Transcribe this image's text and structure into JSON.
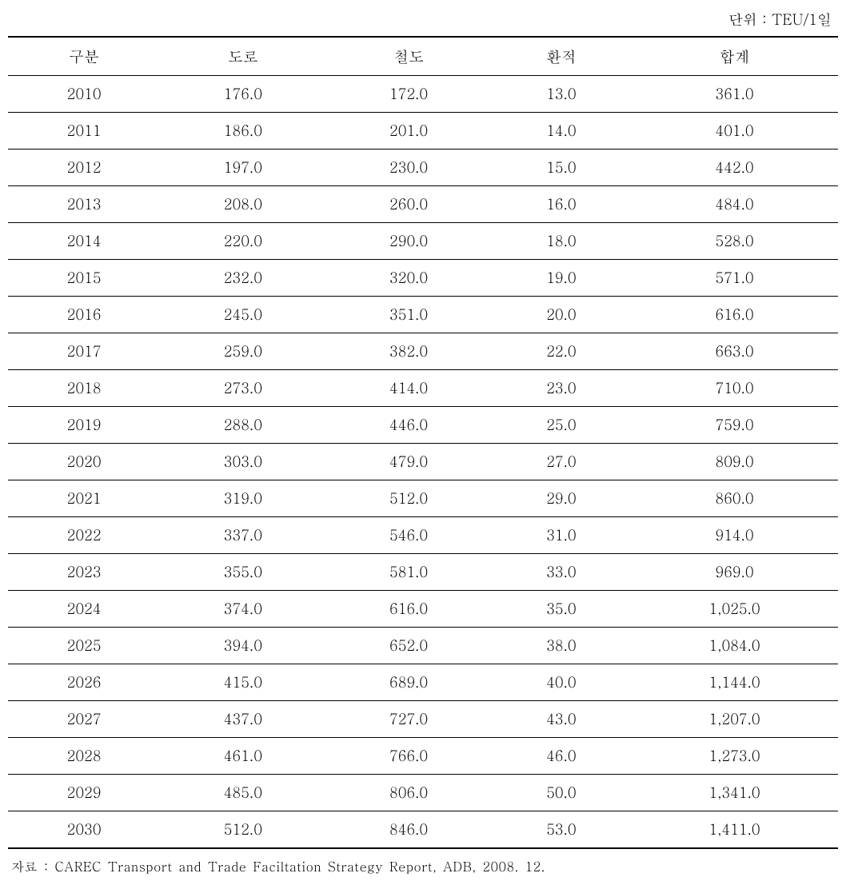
{
  "unit_text": "단위 : TEU/1일",
  "table": {
    "columns": [
      "구분",
      "도로",
      "철도",
      "환적",
      "합계"
    ],
    "rows": [
      [
        "2010",
        "176.0",
        "172.0",
        "13.0",
        "361.0"
      ],
      [
        "2011",
        "186.0",
        "201.0",
        "14.0",
        "401.0"
      ],
      [
        "2012",
        "197.0",
        "230.0",
        "15.0",
        "442.0"
      ],
      [
        "2013",
        "208.0",
        "260.0",
        "16.0",
        "484.0"
      ],
      [
        "2014",
        "220.0",
        "290.0",
        "18.0",
        "528.0"
      ],
      [
        "2015",
        "232.0",
        "320.0",
        "19.0",
        "571.0"
      ],
      [
        "2016",
        "245.0",
        "351.0",
        "20.0",
        "616.0"
      ],
      [
        "2017",
        "259.0",
        "382.0",
        "22.0",
        "663.0"
      ],
      [
        "2018",
        "273.0",
        "414.0",
        "23.0",
        "710.0"
      ],
      [
        "2019",
        "288.0",
        "446.0",
        "25.0",
        "759.0"
      ],
      [
        "2020",
        "303.0",
        "479.0",
        "27.0",
        "809.0"
      ],
      [
        "2021",
        "319.0",
        "512.0",
        "29.0",
        "860.0"
      ],
      [
        "2022",
        "337.0",
        "546.0",
        "31.0",
        "914.0"
      ],
      [
        "2023",
        "355.0",
        "581.0",
        "33.0",
        "969.0"
      ],
      [
        "2024",
        "374.0",
        "616.0",
        "35.0",
        "1,025.0"
      ],
      [
        "2025",
        "394.0",
        "652.0",
        "38.0",
        "1,084.0"
      ],
      [
        "2026",
        "415.0",
        "689.0",
        "40.0",
        "1,144.0"
      ],
      [
        "2027",
        "437.0",
        "727.0",
        "43.0",
        "1,207.0"
      ],
      [
        "2028",
        "461.0",
        "766.0",
        "46.0",
        "1,273.0"
      ],
      [
        "2029",
        "485.0",
        "806.0",
        "50.0",
        "1,341.0"
      ],
      [
        "2030",
        "512.0",
        "846.0",
        "53.0",
        "1,411.0"
      ]
    ]
  },
  "source_text": "자료 : CAREC Transport and Trade Faciltation Strategy Report, ADB, 2008. 12."
}
